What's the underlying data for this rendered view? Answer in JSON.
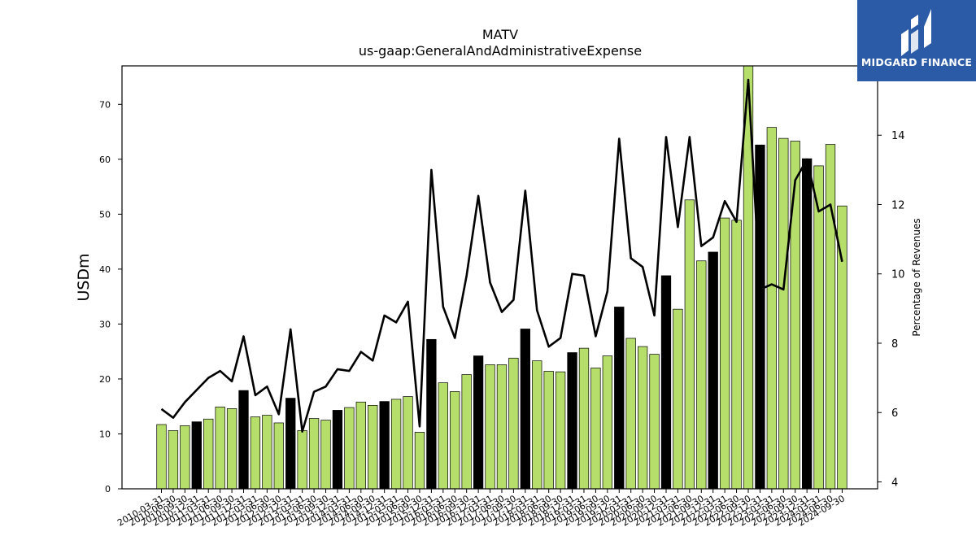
{
  "chart_data": {
    "type": "bar",
    "title": "MATV",
    "subtitle": "us-gaap:GeneralAndAdministrativeExpense",
    "ylabel": "USDm",
    "y2label": "Percentage of Revenues",
    "ylim": [
      0,
      77
    ],
    "y2lim": [
      3.8,
      16.0
    ],
    "yticks": [
      0,
      10,
      20,
      30,
      40,
      50,
      60,
      70
    ],
    "y2ticks": [
      4,
      6,
      8,
      10,
      12,
      14
    ],
    "categories": [
      "2010-03-31",
      "2010-06-30",
      "2010-09-30",
      "2010-12-31",
      "2011-03-31",
      "2011-06-30",
      "2011-09-30",
      "2011-12-31",
      "2012-03-31",
      "2012-06-30",
      "2012-09-30",
      "2012-12-31",
      "2013-03-31",
      "2013-06-30",
      "2013-09-30",
      "2013-12-31",
      "2014-03-31",
      "2014-06-30",
      "2014-09-30",
      "2014-12-31",
      "2015-03-31",
      "2015-06-30",
      "2015-09-30",
      "2015-12-31",
      "2016-03-31",
      "2016-06-30",
      "2016-09-30",
      "2016-12-31",
      "2017-03-31",
      "2017-06-30",
      "2017-09-30",
      "2017-12-31",
      "2018-03-31",
      "2018-06-30",
      "2018-09-30",
      "2018-12-31",
      "2019-03-31",
      "2019-06-30",
      "2019-09-30",
      "2019-12-31",
      "2020-03-31",
      "2020-06-30",
      "2020-09-30",
      "2020-12-31",
      "2021-03-31",
      "2021-06-30",
      "2021-09-30",
      "2021-12-31",
      "2022-03-31",
      "2022-06-30",
      "2022-09-30",
      "2022-12-31",
      "2023-03-31",
      "2023-06-30",
      "2023-09-30",
      "2023-12-31",
      "2024-03-31",
      "2024-06-30",
      "2024-09-30"
    ],
    "series": [
      {
        "type": "bar",
        "values": [
          11.7,
          10.6,
          11.5,
          12.2,
          12.7,
          14.9,
          14.6,
          17.9,
          13.1,
          13.4,
          12.0,
          16.5,
          10.6,
          12.8,
          12.5,
          14.3,
          14.8,
          15.8,
          15.2,
          15.9,
          16.3,
          16.8,
          10.3,
          27.2,
          19.3,
          17.7,
          20.8,
          24.2,
          22.6,
          22.6,
          23.8,
          29.1,
          23.3,
          21.4,
          21.3,
          24.8,
          25.6,
          22.0,
          24.2,
          33.1,
          27.4,
          25.9,
          24.5,
          38.8,
          32.7,
          52.6,
          41.5,
          43.1,
          49.3,
          48.9,
          78.6,
          62.6,
          65.8,
          63.8,
          63.3,
          60.1,
          58.8,
          62.7,
          51.5
        ],
        "highlight_color": "#000000"
      },
      {
        "type": "line",
        "axis": "secondary",
        "color": "#000000",
        "values": [
          6.1,
          5.85,
          6.3,
          6.65,
          7.0,
          7.2,
          6.9,
          8.2,
          6.5,
          6.75,
          5.95,
          8.4,
          5.45,
          6.6,
          6.75,
          7.25,
          7.2,
          7.75,
          7.5,
          8.8,
          8.6,
          9.2,
          5.6,
          13.0,
          9.05,
          8.15,
          9.95,
          12.25,
          9.75,
          8.9,
          9.25,
          12.4,
          8.95,
          7.9,
          8.15,
          10.0,
          9.95,
          8.2,
          9.5,
          13.9,
          10.45,
          10.2,
          8.8,
          13.95,
          11.35,
          13.95,
          10.8,
          11.05,
          12.1,
          11.5,
          15.6,
          9.55,
          9.7,
          9.55,
          12.7,
          13.3,
          11.8,
          12.0,
          10.35
        ]
      }
    ],
    "highlight_indices": [
      3,
      7,
      11,
      15,
      19,
      23,
      27,
      31,
      35,
      39,
      43,
      47,
      51,
      55
    ],
    "colors": {
      "bar": "#b5de6b",
      "bar_highlight": "#000000",
      "line": "#000000",
      "edge": "#000000"
    },
    "grid": false,
    "legend": "none"
  },
  "logo": {
    "text": "MIDGARD FINANCE",
    "background": "#2b5aa6"
  }
}
